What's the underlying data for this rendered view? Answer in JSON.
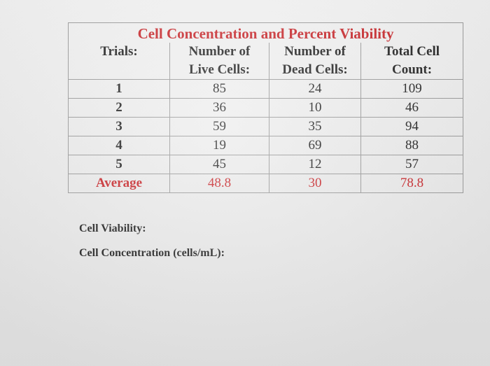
{
  "table": {
    "title": "Cell Concentration and Percent Viability",
    "headers": {
      "trials": "Trials:",
      "live": [
        "Number of",
        "Live Cells:"
      ],
      "dead": [
        "Number of",
        "Dead Cells:"
      ],
      "total": [
        "Total Cell",
        "Count:"
      ]
    },
    "rows": [
      {
        "trial": "1",
        "live": "85",
        "dead": "24",
        "total": "109"
      },
      {
        "trial": "2",
        "live": "36",
        "dead": "10",
        "total": "46"
      },
      {
        "trial": "3",
        "live": "59",
        "dead": "35",
        "total": "94"
      },
      {
        "trial": "4",
        "live": "19",
        "dead": "69",
        "total": "88"
      },
      {
        "trial": "5",
        "live": "45",
        "dead": "12",
        "total": "57"
      }
    ],
    "average": {
      "label": "Average",
      "live": "48.8",
      "dead": "30",
      "total": "78.8"
    }
  },
  "notes": {
    "viability": "Cell Viability:",
    "concentration": "Cell Concentration (cells/mL):"
  },
  "colors": {
    "accent": "#c8262a",
    "text": "#222222",
    "border": "#9a9a9a"
  }
}
